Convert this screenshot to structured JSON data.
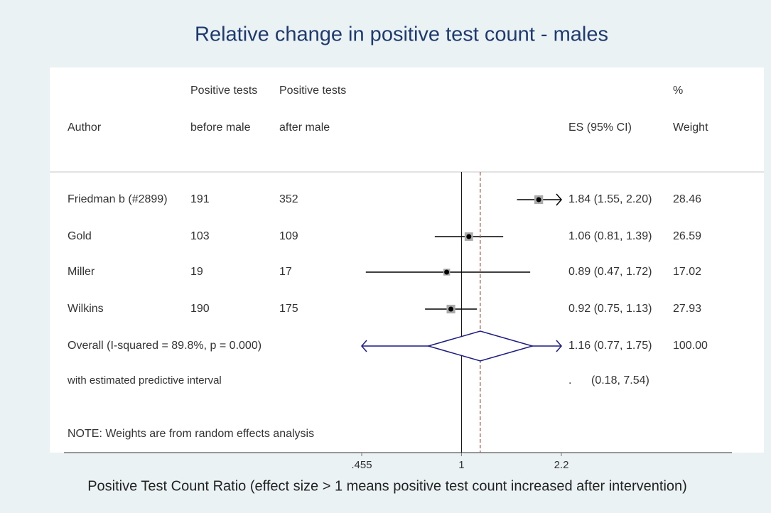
{
  "chart_data": {
    "type": "forest",
    "title": "Relative change in positive test count - males",
    "xlabel": "Positive Test Count Ratio (effect size > 1 means positive test count increased after intervention)",
    "xscale": "log",
    "xlim": [
      0.455,
      2.2
    ],
    "xticks": [
      {
        "value": 0.455,
        "label": ".455"
      },
      1,
      2.2
    ],
    "headers": {
      "author": "Author",
      "before": [
        "Positive tests",
        "before male"
      ],
      "after": [
        "Positive tests",
        "after male"
      ],
      "es": "ES (95% CI)",
      "weight": [
        "%",
        "Weight"
      ]
    },
    "studies": [
      {
        "author": "Friedman b (#2899)",
        "before": 191,
        "after": 352,
        "es": 1.84,
        "lower": 1.55,
        "upper": 2.2,
        "es_label": "1.84 (1.55, 2.20)",
        "weight": 28.46
      },
      {
        "author": "Gold",
        "before": 103,
        "after": 109,
        "es": 1.06,
        "lower": 0.81,
        "upper": 1.39,
        "es_label": "1.06 (0.81, 1.39)",
        "weight": 26.59
      },
      {
        "author": "Miller",
        "before": 19,
        "after": 17,
        "es": 0.89,
        "lower": 0.47,
        "upper": 1.72,
        "es_label": "0.89 (0.47, 1.72)",
        "weight": 17.02
      },
      {
        "author": "Wilkins",
        "before": 190,
        "after": 175,
        "es": 0.92,
        "lower": 0.75,
        "upper": 1.13,
        "es_label": "0.92 (0.75, 1.13)",
        "weight": 27.93
      }
    ],
    "overall": {
      "label": "Overall  (I-squared = 89.8%, p = 0.000)",
      "es": 1.16,
      "lower": 0.77,
      "upper": 1.75,
      "es_label": "1.16 (0.77, 1.75)",
      "weight": 100,
      "weight_label": "100.00"
    },
    "predictive": {
      "label": "with estimated predictive interval",
      "lower": 0.18,
      "upper": 7.54,
      "es_label": ".",
      "ci_label": "(0.18, 7.54)"
    },
    "note": "NOTE: Weights are from random effects analysis"
  }
}
